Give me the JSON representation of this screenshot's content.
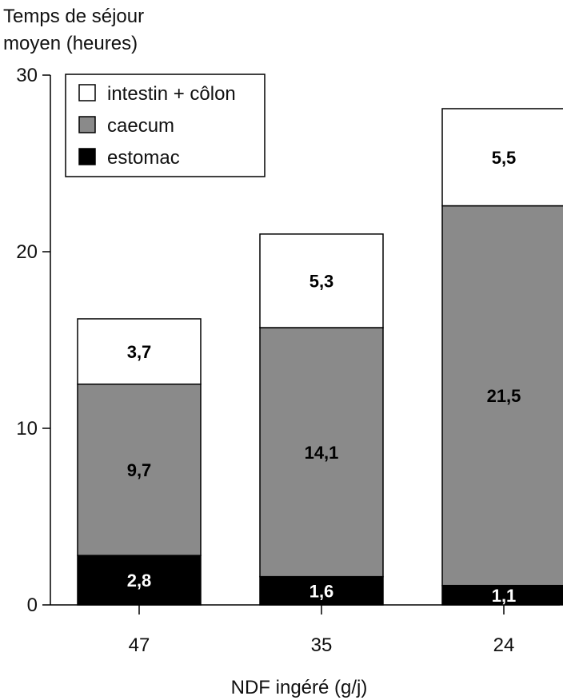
{
  "chart_data": {
    "type": "bar",
    "stacked": true,
    "ylabel": [
      "Temps de séjour",
      "moyen (heures)"
    ],
    "xlabel": "NDF ingéré (g/j)",
    "categories": [
      "47",
      "35",
      "24"
    ],
    "ylim": [
      0,
      30
    ],
    "yticks": [
      0,
      10,
      20,
      30
    ],
    "grid": false,
    "legend_position": "top-left",
    "legend_order": [
      "intestin + côlon",
      "caecum",
      "estomac"
    ],
    "series": [
      {
        "name": "estomac",
        "color": "#000000",
        "label_color": "#ffffff",
        "values": [
          2.8,
          1.6,
          1.1
        ],
        "labels": [
          "2,8",
          "1,6",
          "1,1"
        ]
      },
      {
        "name": "caecum",
        "color": "#8a8a8a",
        "label_color": "#000000",
        "values": [
          9.7,
          14.1,
          21.5
        ],
        "labels": [
          "9,7",
          "14,1",
          "21,5"
        ]
      },
      {
        "name": "intestin + côlon",
        "color": "#ffffff",
        "label_color": "#000000",
        "values": [
          3.7,
          5.3,
          5.5
        ],
        "labels": [
          "3,7",
          "5,3",
          "5,5"
        ]
      }
    ]
  }
}
